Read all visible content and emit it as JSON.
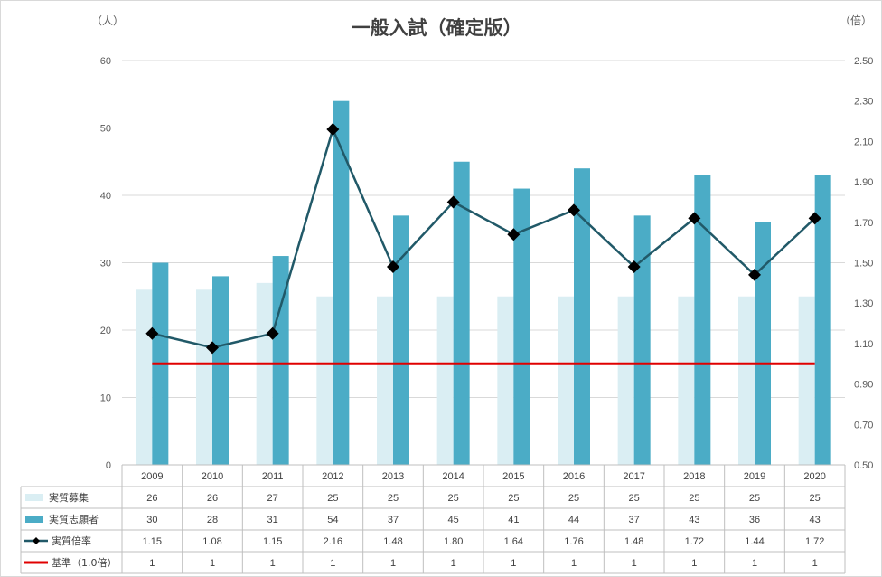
{
  "chart_data": {
    "type": "bar",
    "title": "一般入試（確定版）",
    "y_left_unit": "（人）",
    "y_right_unit": "（倍）",
    "categories": [
      "2009",
      "2010",
      "2011",
      "2012",
      "2013",
      "2014",
      "2015",
      "2016",
      "2017",
      "2018",
      "2019",
      "2020"
    ],
    "y_left": {
      "min": 0,
      "max": 60,
      "ticks": [
        "0",
        "10",
        "20",
        "30",
        "40",
        "50",
        "60"
      ]
    },
    "y_right": {
      "min": 0.5,
      "max": 2.5,
      "ticks": [
        "0.50",
        "0.70",
        "0.90",
        "1.10",
        "1.30",
        "1.50",
        "1.70",
        "1.90",
        "2.10",
        "2.30",
        "2.50"
      ]
    },
    "grid": true,
    "legend": "data-table",
    "series": [
      {
        "name": "実質募集",
        "kind": "bar",
        "axis": "left",
        "color": "#daeef3",
        "values": [
          26,
          26,
          27,
          25,
          25,
          25,
          25,
          25,
          25,
          25,
          25,
          25
        ],
        "labels": [
          "26",
          "26",
          "27",
          "25",
          "25",
          "25",
          "25",
          "25",
          "25",
          "25",
          "25",
          "25"
        ]
      },
      {
        "name": "実質志願者",
        "kind": "bar",
        "axis": "left",
        "color": "#4bacc6",
        "values": [
          30,
          28,
          31,
          54,
          37,
          45,
          41,
          44,
          37,
          43,
          36,
          43
        ],
        "labels": [
          "30",
          "28",
          "31",
          "54",
          "37",
          "45",
          "41",
          "44",
          "37",
          "43",
          "36",
          "43"
        ]
      },
      {
        "name": "実質倍率",
        "kind": "line-marker",
        "axis": "right",
        "color": "#215968",
        "marker_color": "#000000",
        "values": [
          1.15,
          1.08,
          1.15,
          2.16,
          1.48,
          1.8,
          1.64,
          1.76,
          1.48,
          1.72,
          1.44,
          1.72
        ],
        "labels": [
          "1.15",
          "1.08",
          "1.15",
          "2.16",
          "1.48",
          "1.80",
          "1.64",
          "1.76",
          "1.48",
          "1.72",
          "1.44",
          "1.72"
        ]
      },
      {
        "name": "基準（1.0倍）",
        "kind": "line",
        "axis": "right",
        "color": "#e00000",
        "values": [
          1,
          1,
          1,
          1,
          1,
          1,
          1,
          1,
          1,
          1,
          1,
          1
        ],
        "labels": [
          "1",
          "1",
          "1",
          "1",
          "1",
          "1",
          "1",
          "1",
          "1",
          "1",
          "1",
          "1"
        ]
      }
    ]
  }
}
